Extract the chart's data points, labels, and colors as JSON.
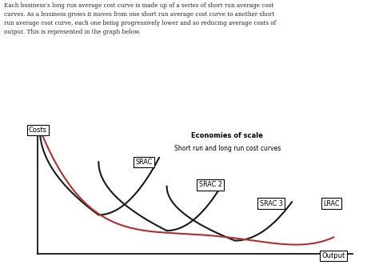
{
  "title_line1": "Economies of scale",
  "title_line2": "Short run and long run cost curves",
  "xlabel": "Output",
  "ylabel": "Costs",
  "background_color": "#ffffff",
  "curve_color_srac": "#1a1a1a",
  "curve_color_lrac": "#b03030",
  "text_top": [
    "Each business’s long run average cost curve is made up of a series of short run average cost",
    "curves. As a business grows it moves from one short run average cost curve to another short",
    "run average cost curve, each one being progressively lower and so reducing average costs of",
    "output. This is represented in the graph below."
  ]
}
